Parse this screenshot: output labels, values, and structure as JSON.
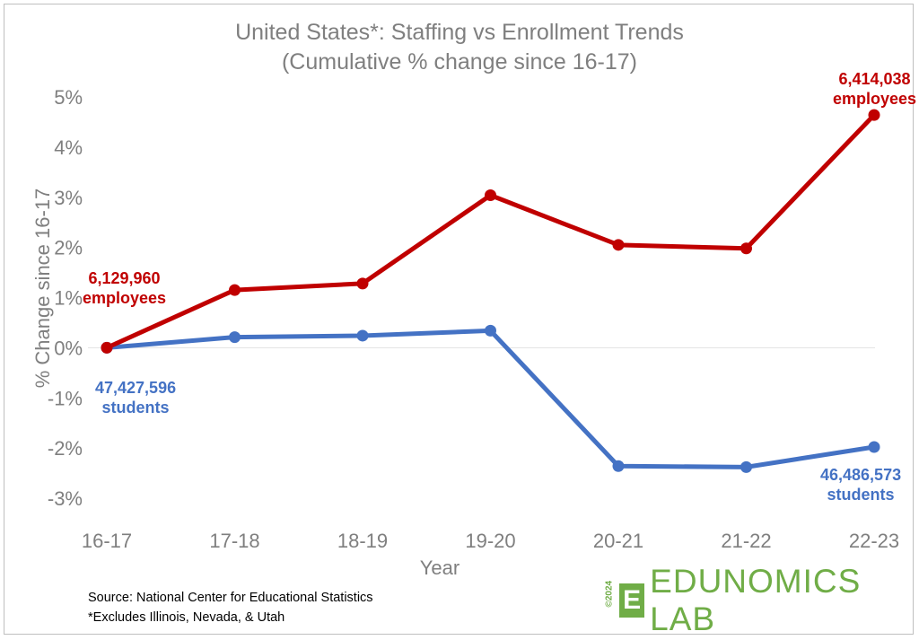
{
  "chart_data": {
    "type": "line",
    "title": "United States*: Staffing vs Enrollment Trends",
    "subtitle": "(Cumulative % change since 16-17)",
    "xlabel": "Year",
    "ylabel": "% Change since 16-17",
    "categories": [
      "16-17",
      "17-18",
      "18-19",
      "19-20",
      "20-21",
      "21-22",
      "22-23"
    ],
    "ylim": [
      -3,
      5
    ],
    "yticks": [
      -3,
      -2,
      -1,
      0,
      1,
      2,
      3,
      4,
      5
    ],
    "ytick_labels": [
      "-3%",
      "-2%",
      "-1%",
      "0%",
      "1%",
      "2%",
      "3%",
      "4%",
      "5%"
    ],
    "series": [
      {
        "name": "employees",
        "color": "#c00000",
        "values": [
          0,
          1.15,
          1.28,
          3.04,
          2.05,
          1.98,
          4.64
        ]
      },
      {
        "name": "students",
        "color": "#4472c4",
        "values": [
          0,
          0.21,
          0.24,
          0.34,
          -2.36,
          -2.38,
          -1.98
        ]
      }
    ],
    "annotations": {
      "emp_start_value": "6,129,960",
      "emp_start_unit": "employees",
      "emp_end_value": "6,414,038",
      "emp_end_unit": "employees",
      "stu_start_value": "47,427,596",
      "stu_start_unit": "students",
      "stu_end_value": "46,486,573",
      "stu_end_unit": "students"
    }
  },
  "footer": {
    "source": "Source: National Center for Educational Statistics",
    "note": "*Excludes Illinois, Nevada, & Utah"
  },
  "logo": {
    "year": "©2024",
    "mark": "E",
    "name": "EDUNOMICS LAB",
    "color": "#70ad47"
  }
}
